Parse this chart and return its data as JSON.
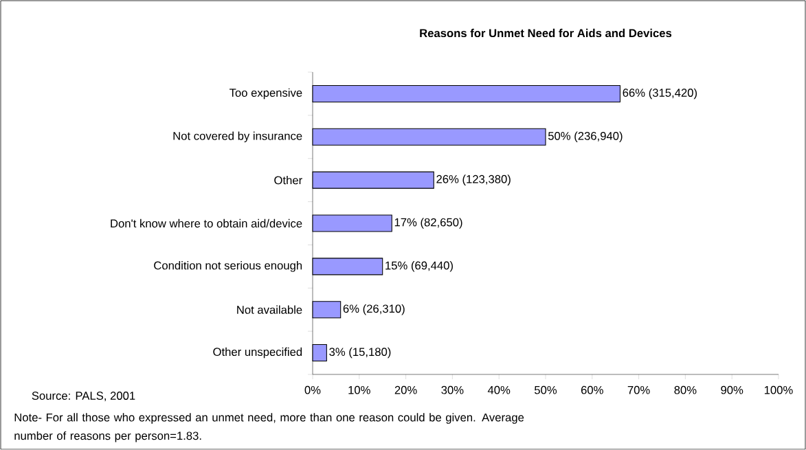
{
  "chart_data": {
    "type": "bar",
    "orientation": "horizontal",
    "title": "Reasons for Unmet Need for Aids and Devices",
    "categories": [
      "Too expensive",
      "Not covered by insurance",
      "Other",
      "Don't know where to obtain aid/device",
      "Condition not serious enough",
      "Not available",
      "Other unspecified"
    ],
    "values": [
      66,
      50,
      26,
      17,
      15,
      6,
      3
    ],
    "value_labels": [
      "66%  (315,420)",
      "50%  (236,940)",
      "26%  (123,380)",
      "17%  (82,650)",
      "15% (69,440)",
      "6%  (26,310)",
      "3%  (15,180)"
    ],
    "color": "#9999ff",
    "xlim": [
      0,
      100
    ],
    "xticks": [
      {
        "value": 0,
        "label": "0%"
      },
      {
        "value": 10,
        "label": "10%"
      },
      {
        "value": 20,
        "label": "20%"
      },
      {
        "value": 30,
        "label": "30%"
      },
      {
        "value": 40,
        "label": "40%"
      },
      {
        "value": 50,
        "label": "50%"
      },
      {
        "value": 60,
        "label": "60%"
      },
      {
        "value": 70,
        "label": "70%"
      },
      {
        "value": 80,
        "label": "80%"
      },
      {
        "value": 90,
        "label": "90%"
      },
      {
        "value": 100,
        "label": "100%"
      }
    ],
    "annotations": [
      "Source: PALS, 2001",
      "Note- For all those who expressed an unmet need, more than one reason could be given. Average number of reasons per person=1.83."
    ]
  }
}
